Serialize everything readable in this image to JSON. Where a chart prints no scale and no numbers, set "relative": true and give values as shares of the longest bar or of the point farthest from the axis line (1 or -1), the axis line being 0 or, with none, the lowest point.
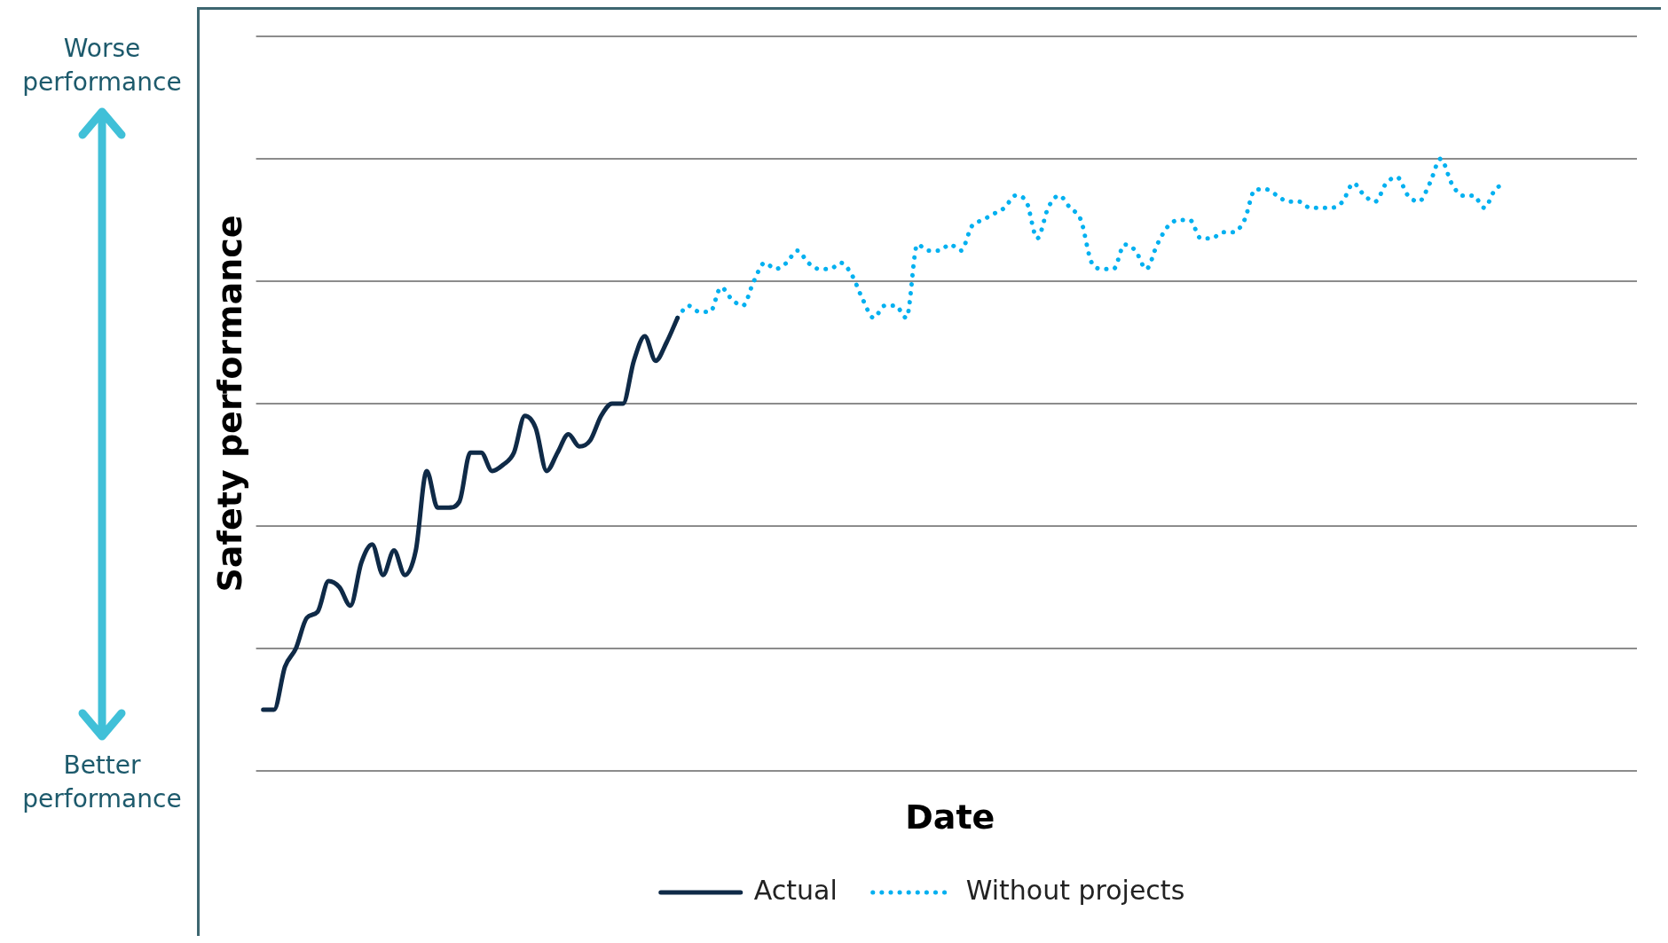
{
  "chart_data": {
    "type": "line",
    "xlabel": "Date",
    "ylabel": "Safety performance",
    "relative": true,
    "grid": "y",
    "legend": "bottom",
    "marker": "none",
    "annotations": [
      "Worse performance",
      "Better performance"
    ],
    "categories": [
      null,
      null,
      null,
      null,
      null,
      null,
      null,
      null,
      null,
      null,
      null,
      null,
      null,
      null,
      null,
      null,
      null,
      null,
      null,
      null,
      null,
      null,
      null,
      null,
      null,
      null,
      null,
      null,
      null,
      null,
      null,
      null,
      null,
      null,
      null,
      null,
      null,
      null,
      null,
      null,
      null,
      null,
      null,
      null,
      null,
      null,
      null,
      null,
      null,
      null,
      null,
      null,
      null,
      null,
      null,
      null,
      null,
      null,
      null,
      null,
      null,
      null,
      null,
      null,
      null,
      null,
      null,
      null,
      null,
      null,
      null,
      null,
      null,
      null,
      null,
      null,
      null,
      null,
      null,
      null,
      null,
      null,
      null,
      null,
      null,
      null,
      null,
      null,
      null,
      null,
      null,
      null,
      null,
      null,
      null,
      null,
      null,
      null,
      null,
      null,
      null,
      null,
      null,
      null,
      null,
      null,
      null,
      null,
      null,
      null,
      null,
      null,
      null,
      null,
      null,
      null,
      null,
      null,
      null,
      null,
      null,
      null,
      null,
      null,
      null,
      null,
      null
    ],
    "series": [
      {
        "name": "Actual",
        "color": "#0f2a47",
        "line_style": "solid",
        "values": [
          0.1,
          0.1,
          0.17,
          0.2,
          0.25,
          0.26,
          0.31,
          0.3,
          0.27,
          0.34,
          0.37,
          0.32,
          0.36,
          0.32,
          0.36,
          0.49,
          0.43,
          0.43,
          0.44,
          0.52,
          0.52,
          0.49,
          0.5,
          0.52,
          0.58,
          0.56,
          0.49,
          0.52,
          0.55,
          0.53,
          0.54,
          0.58,
          0.6,
          0.6,
          0.67,
          0.71,
          0.67,
          0.7,
          0.74,
          null,
          null,
          null,
          null,
          null,
          null,
          null,
          null,
          null,
          null,
          null,
          null,
          null,
          null,
          null,
          null,
          null,
          null,
          null,
          null,
          null,
          null,
          null,
          null,
          null,
          null,
          null,
          null,
          null,
          null,
          null,
          null,
          null,
          null,
          null,
          null,
          null,
          null,
          null,
          null,
          null,
          null,
          null,
          null,
          null,
          null,
          null,
          null,
          null,
          null,
          null,
          null,
          null,
          null,
          null,
          null,
          null,
          null,
          null,
          null,
          null,
          null,
          null,
          null,
          null,
          null,
          null,
          null,
          null,
          null,
          null,
          null,
          null,
          null,
          null,
          null,
          null,
          null,
          null,
          null,
          null,
          null,
          null,
          null,
          null,
          null,
          null,
          null
        ]
      },
      {
        "name": "Without projects",
        "color": "#00b0f0",
        "line_style": "dotted",
        "values": [
          null,
          null,
          null,
          null,
          null,
          null,
          null,
          null,
          null,
          null,
          null,
          null,
          null,
          null,
          null,
          null,
          null,
          null,
          null,
          null,
          null,
          null,
          null,
          null,
          null,
          null,
          null,
          null,
          null,
          null,
          null,
          null,
          null,
          null,
          null,
          null,
          null,
          null,
          0.74,
          0.76,
          0.75,
          0.75,
          0.79,
          0.77,
          0.76,
          0.8,
          0.83,
          0.82,
          0.83,
          0.85,
          0.83,
          0.82,
          0.82,
          0.83,
          0.81,
          0.77,
          0.74,
          0.76,
          0.76,
          0.74,
          0.86,
          0.85,
          0.85,
          0.86,
          0.85,
          0.89,
          0.9,
          0.91,
          0.92,
          0.94,
          0.93,
          0.87,
          0.92,
          0.94,
          0.92,
          0.9,
          0.83,
          0.82,
          0.82,
          0.86,
          0.85,
          0.82,
          0.86,
          0.89,
          0.9,
          0.9,
          0.87,
          0.87,
          0.88,
          0.88,
          0.9,
          0.95,
          0.95,
          0.94,
          0.93,
          0.93,
          0.92,
          0.92,
          0.92,
          0.93,
          0.96,
          0.94,
          0.93,
          0.96,
          0.97,
          0.94,
          0.93,
          0.96,
          1.0,
          0.96,
          0.94,
          0.94,
          0.92,
          0.95,
          0.96,
          null,
          null,
          null,
          null,
          null,
          null,
          null,
          null,
          null,
          null,
          null,
          null
        ]
      }
    ]
  }
}
